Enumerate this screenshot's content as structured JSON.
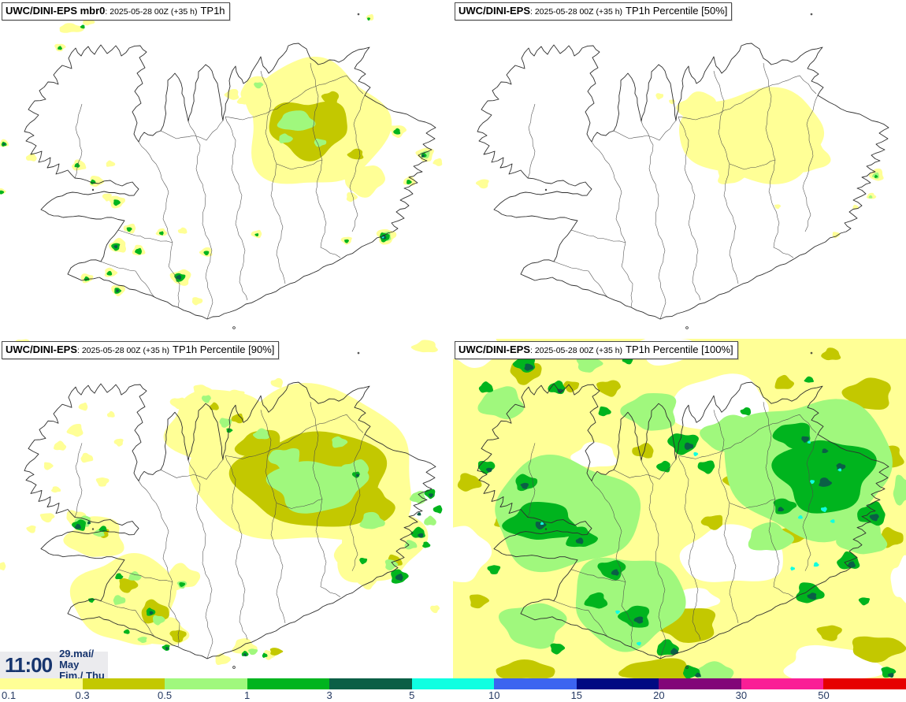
{
  "panels": [
    {
      "key": "member-mbr0",
      "model": "UWC/DINI-EPS mbr0",
      "run": ": 2025-05-28 00Z (+35 h)",
      "product": "TP1h"
    },
    {
      "key": "percentile-50",
      "model": "UWC/DINI-EPS",
      "run": ": 2025-05-28 00Z (+35 h)",
      "product": "TP1h Percentile [50%]"
    },
    {
      "key": "percentile-90",
      "model": "UWC/DINI-EPS",
      "run": ": 2025-05-28 00Z (+35 h)",
      "product": "TP1h Percentile [90%]"
    },
    {
      "key": "percentile-100",
      "model": "UWC/DINI-EPS",
      "run": ": 2025-05-28 00Z (+35 h)",
      "product": "TP1h Percentile [100%]"
    }
  ],
  "clock": {
    "time": "11:00",
    "date": "29.maí/ May",
    "day": "Fim./ Thu"
  },
  "colorbar": {
    "ticks": [
      "0.1",
      "0.3",
      "0.5",
      "1",
      "3",
      "5",
      "10",
      "15",
      "20",
      "30",
      "50"
    ],
    "colors": [
      "#ffff96",
      "#c3c800",
      "#a0f87d",
      "#00b41e",
      "#0b5f46",
      "#0fffe1",
      "#3c64f0",
      "#000a82",
      "#820578",
      "#fa1e96",
      "#e60000"
    ],
    "tick_color": "#263a63"
  }
}
